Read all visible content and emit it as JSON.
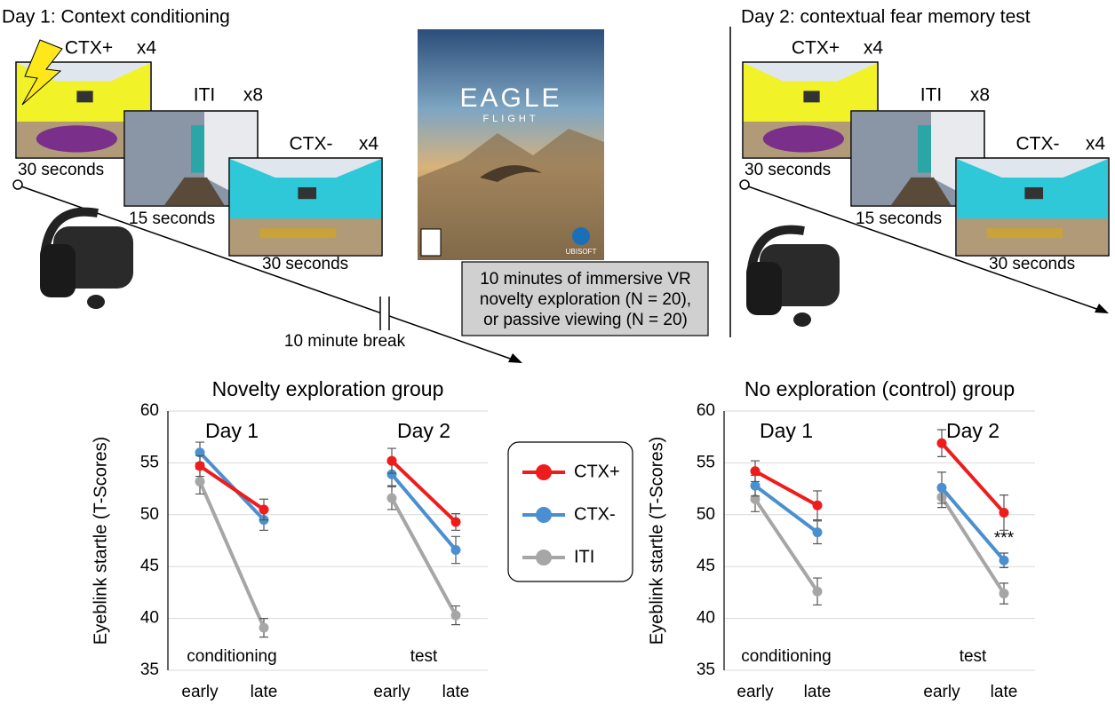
{
  "day1": {
    "title": "Day 1: Context conditioning",
    "screens": [
      {
        "label": "CTX+",
        "count": "x4",
        "duration": "30 seconds"
      },
      {
        "label": "ITI",
        "count": "x8",
        "duration": "15 seconds"
      },
      {
        "label": "CTX-",
        "count": "x4",
        "duration": "30 seconds"
      }
    ]
  },
  "break": "10 minute break",
  "game": {
    "title": "EAGLE",
    "subtitle": "FLIGHT",
    "publisher": "UBISOFT"
  },
  "note": [
    "10 minutes of immersive VR",
    "novelty exploration (N = 20),",
    "or passive viewing (N = 20)"
  ],
  "day2": {
    "title": "Day 2: contextual fear memory test",
    "screens": [
      {
        "label": "CTX+",
        "count": "x4",
        "duration": "30 seconds"
      },
      {
        "label": "ITI",
        "count": "x8",
        "duration": "15 seconds"
      },
      {
        "label": "CTX-",
        "count": "x4",
        "duration": "30 seconds"
      }
    ]
  },
  "chart_data": [
    {
      "type": "line",
      "title": "Novelty exploration group",
      "y_label": "Eyeblink startle (T-Scores)",
      "categories": [
        "early",
        "late",
        null,
        "early",
        "late"
      ],
      "ylim": [
        35,
        60
      ],
      "yticks": [
        35,
        40,
        45,
        50,
        55,
        60
      ],
      "grid": true,
      "annotations": [
        "Day 1",
        "Day 2",
        "conditioning",
        "test"
      ],
      "series": [
        {
          "name": "CTX+",
          "color": "#ee1c1c",
          "values": [
            54.7,
            50.5,
            null,
            55.2,
            49.3
          ],
          "errors": [
            1.0,
            1.0,
            null,
            1.2,
            0.8
          ]
        },
        {
          "name": "CTX-",
          "color": "#4a90d0",
          "values": [
            56.0,
            49.5,
            null,
            53.9,
            46.6
          ],
          "errors": [
            1.0,
            1.0,
            null,
            1.1,
            1.3
          ]
        },
        {
          "name": "ITI",
          "color": "#a6a6a6",
          "values": [
            53.2,
            39.1,
            null,
            51.6,
            40.3
          ],
          "errors": [
            1.2,
            0.9,
            null,
            1.1,
            0.9
          ]
        }
      ]
    },
    {
      "type": "line",
      "title": "No exploration (control) group",
      "y_label": "Eyeblink startle (T-Scores)",
      "categories": [
        "early",
        "late",
        null,
        "early",
        "late"
      ],
      "ylim": [
        35,
        60
      ],
      "yticks": [
        35,
        40,
        45,
        50,
        55,
        60
      ],
      "grid": true,
      "annotations": [
        "Day 1",
        "Day 2",
        "conditioning",
        "test",
        "***"
      ],
      "series": [
        {
          "name": "CTX+",
          "color": "#ee1c1c",
          "values": [
            54.2,
            50.9,
            null,
            56.9,
            50.2
          ],
          "errors": [
            1.0,
            1.4,
            null,
            1.3,
            1.7
          ]
        },
        {
          "name": "CTX-",
          "color": "#4a90d0",
          "values": [
            52.8,
            48.3,
            null,
            52.6,
            45.6
          ],
          "errors": [
            1.0,
            1.1,
            null,
            1.5,
            0.7
          ]
        },
        {
          "name": "ITI",
          "color": "#a6a6a6",
          "values": [
            51.5,
            42.6,
            null,
            51.7,
            42.4
          ],
          "errors": [
            1.2,
            1.3,
            null,
            1.0,
            1.0
          ]
        }
      ]
    }
  ]
}
